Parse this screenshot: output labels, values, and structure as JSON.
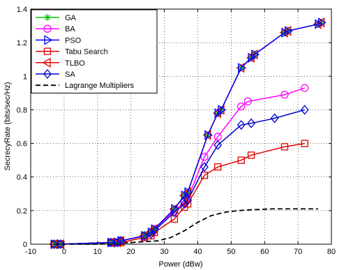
{
  "chart_data": {
    "type": "line",
    "title": "",
    "xlabel": "Power (dBw)",
    "ylabel": "SecrecyRate (bits/sec/Hz)",
    "xlim": [
      -10,
      80
    ],
    "ylim": [
      0,
      1.4
    ],
    "xticks": [
      -10,
      0,
      10,
      20,
      30,
      40,
      50,
      60,
      70,
      80
    ],
    "yticks": [
      0,
      0.2,
      0.4,
      0.6,
      0.8,
      1,
      1.2,
      1.4
    ],
    "grid": true,
    "legend_position": "top-left",
    "series": [
      {
        "name": "GA",
        "color": "#00cc00",
        "marker": "star",
        "dash": "",
        "x": [
          -3,
          -1,
          14,
          16,
          17,
          24,
          26,
          27,
          33,
          36,
          37,
          43,
          46,
          47,
          53,
          56,
          57,
          66,
          67,
          76,
          77
        ],
        "y": [
          0.0,
          0.0,
          0.01,
          0.01,
          0.02,
          0.05,
          0.07,
          0.09,
          0.21,
          0.29,
          0.31,
          0.65,
          0.78,
          0.8,
          1.05,
          1.11,
          1.13,
          1.26,
          1.27,
          1.31,
          1.32
        ]
      },
      {
        "name": "BA",
        "color": "#ff00ff",
        "marker": "circle",
        "dash": "",
        "x": [
          -3,
          -1,
          14,
          16,
          17,
          24,
          26,
          27,
          33,
          36,
          37,
          42,
          46,
          53,
          55,
          66,
          72
        ],
        "y": [
          0.0,
          0.0,
          0.01,
          0.01,
          0.02,
          0.05,
          0.07,
          0.09,
          0.2,
          0.25,
          0.27,
          0.52,
          0.64,
          0.82,
          0.85,
          0.89,
          0.93
        ]
      },
      {
        "name": "PSO",
        "color": "#0000ff",
        "marker": "triangle-right",
        "dash": "",
        "x": [
          -3,
          -1,
          14,
          16,
          17,
          24,
          26,
          27,
          33,
          36,
          37,
          43,
          46,
          47,
          53,
          56,
          57,
          66,
          67,
          76,
          77
        ],
        "y": [
          0.0,
          0.0,
          0.01,
          0.01,
          0.02,
          0.05,
          0.07,
          0.09,
          0.21,
          0.29,
          0.31,
          0.65,
          0.78,
          0.8,
          1.05,
          1.11,
          1.13,
          1.26,
          1.27,
          1.31,
          1.32
        ]
      },
      {
        "name": "Tabu Search",
        "color": "#dd0000",
        "marker": "square",
        "dash": "",
        "x": [
          -3,
          -1,
          14,
          16,
          17,
          24,
          26,
          27,
          33,
          36,
          37,
          42,
          46,
          53,
          56,
          66,
          72
        ],
        "y": [
          0.0,
          0.0,
          0.01,
          0.01,
          0.01,
          0.04,
          0.05,
          0.07,
          0.15,
          0.22,
          0.24,
          0.41,
          0.46,
          0.5,
          0.53,
          0.58,
          0.6
        ]
      },
      {
        "name": "TLBO",
        "color": "#dd0000",
        "marker": "triangle-left",
        "dash": "",
        "x": [
          -3,
          -1,
          14,
          16,
          17,
          24,
          26,
          27,
          33,
          36,
          37,
          43,
          46,
          47,
          53,
          56,
          57,
          66,
          67,
          76,
          77
        ],
        "y": [
          0.0,
          0.0,
          0.01,
          0.01,
          0.02,
          0.05,
          0.07,
          0.09,
          0.21,
          0.29,
          0.31,
          0.65,
          0.78,
          0.8,
          1.05,
          1.11,
          1.13,
          1.26,
          1.27,
          1.31,
          1.32
        ]
      },
      {
        "name": "SA",
        "color": "#0000cc",
        "marker": "diamond",
        "dash": "",
        "x": [
          -3,
          -1,
          14,
          16,
          17,
          24,
          26,
          27,
          33,
          36,
          37,
          42,
          46,
          53,
          56,
          63,
          72
        ],
        "y": [
          0.0,
          0.0,
          0.01,
          0.01,
          0.02,
          0.05,
          0.06,
          0.08,
          0.19,
          0.24,
          0.26,
          0.46,
          0.59,
          0.71,
          0.72,
          0.75,
          0.8
        ]
      },
      {
        "name": "Lagrange Multipliers",
        "color": "#000000",
        "marker": "none",
        "dash": "7,4",
        "x": [
          -3,
          10,
          20,
          28,
          32,
          36,
          40,
          44,
          48,
          52,
          56,
          62,
          70,
          76
        ],
        "y": [
          0.0,
          0.0,
          0.01,
          0.02,
          0.04,
          0.08,
          0.13,
          0.17,
          0.19,
          0.2,
          0.205,
          0.21,
          0.21,
          0.21
        ]
      }
    ]
  }
}
